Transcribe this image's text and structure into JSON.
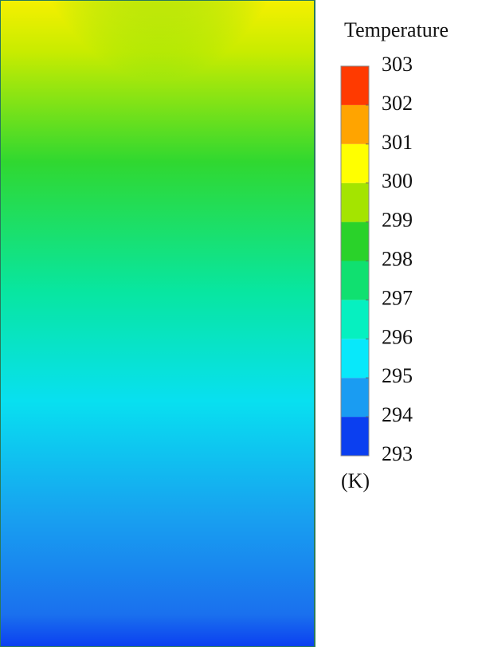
{
  "chart_data": {
    "type": "contour",
    "title": "Temperature",
    "unit_label": "(K)",
    "ylim": [
      293,
      303
    ],
    "yticks": [
      293,
      294,
      295,
      296,
      297,
      298,
      299,
      300,
      301,
      302,
      303
    ],
    "colors": [
      "#0b3ff0",
      "#1a9cf2",
      "#08e8fa",
      "#06f0c0",
      "#10e070",
      "#2ad22a",
      "#a4e400",
      "#ffff00",
      "#ffa400",
      "#ff3a00"
    ]
  }
}
